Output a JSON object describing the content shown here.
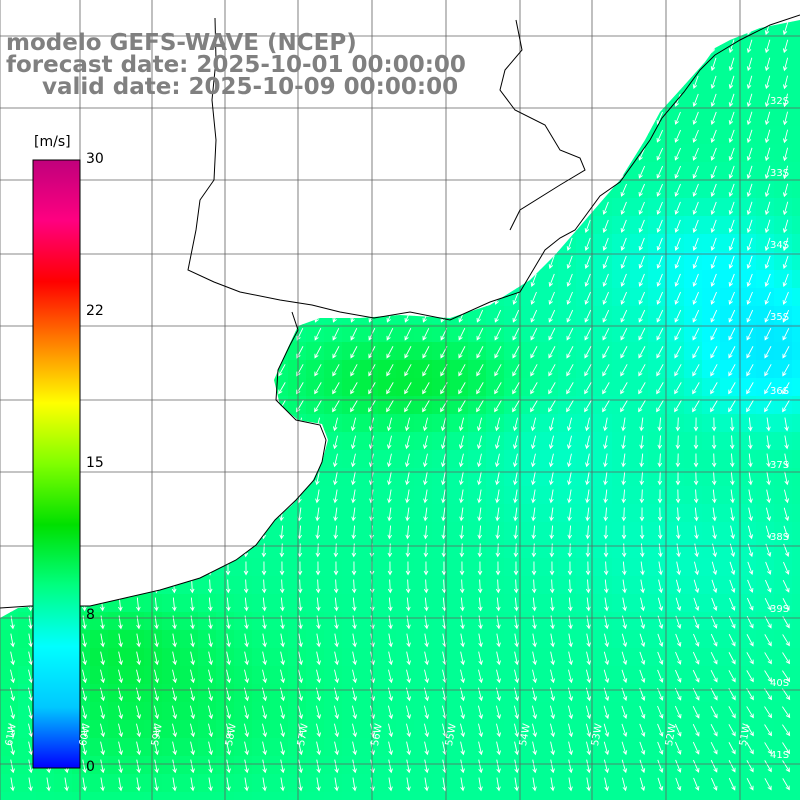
{
  "titles": {
    "line1": "modelo GEFS-WAVE (NCEP)",
    "line2": "forecast date: 2025-10-01 00:00:00",
    "line3": "valid date: 2025-10-09 00:00:00"
  },
  "colorbar": {
    "unit": "[m/s]",
    "ticks": [
      "30",
      "22",
      "15",
      "8",
      "0"
    ],
    "stops": [
      "#0000ff",
      "#00c8ff",
      "#00ffff",
      "#00ff80",
      "#00e000",
      "#80ff00",
      "#ffff00",
      "#ff8000",
      "#ff0000",
      "#ff0080",
      "#c0007c"
    ]
  },
  "lat_labels": [
    "32S",
    "33S",
    "34S",
    "35S",
    "36S",
    "37S",
    "38S",
    "39S",
    "40S",
    "41S"
  ],
  "lon_labels": [
    "61W",
    "60W",
    "59W",
    "58W",
    "57W",
    "56W",
    "55W",
    "54W",
    "53W",
    "52W",
    "51W"
  ],
  "colors": {
    "land": "#ffffff",
    "coast": "#000000",
    "grid": "#606060",
    "arrows": "#ffffff",
    "title": "#808080"
  }
}
